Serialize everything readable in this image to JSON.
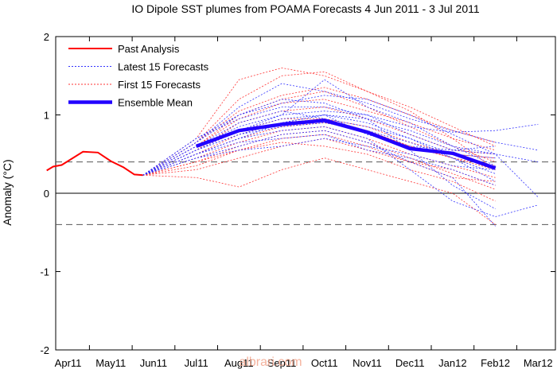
{
  "chart_data": {
    "type": "line",
    "title": "IO Dipole  SST plumes from POAMA Forecasts  4 Jun 2011 -  3 Jul 2011",
    "ylabel": "Anomaly (°C)",
    "xlabel": "",
    "ylim": [
      -2,
      2
    ],
    "xlim": [
      0,
      11
    ],
    "yticks": [
      -2,
      -1,
      0,
      1,
      2
    ],
    "x_ticks": [
      {
        "label": "Apr11",
        "x": 0.5
      },
      {
        "label": "May11",
        "x": 1.5
      },
      {
        "label": "Jun11",
        "x": 2.5
      },
      {
        "label": "Jul11",
        "x": 3.5
      },
      {
        "label": "Aug11",
        "x": 4.5
      },
      {
        "label": "Sep11",
        "x": 5.5
      },
      {
        "label": "Oct11",
        "x": 6.5
      },
      {
        "label": "Nov11",
        "x": 7.5
      },
      {
        "label": "Dec11",
        "x": 8.5
      },
      {
        "label": "Jan12",
        "x": 9.5
      },
      {
        "label": "Feb12",
        "x": 10.5
      },
      {
        "label": "Mar12",
        "x": 11.5
      }
    ],
    "threshold_lines": [
      0.4,
      -0.4
    ],
    "legend": {
      "placement": "top-left",
      "entries": [
        {
          "label": "Past Analysis",
          "color": "#ff0000",
          "style": "solid"
        },
        {
          "label": "Latest 15 Forecasts",
          "color": "#3333ff",
          "style": "dotted"
        },
        {
          "label": "First 15 Forecasts",
          "color": "#ff3333",
          "style": "dotted"
        },
        {
          "label": "Ensemble Mean",
          "color": "#2200ff",
          "style": "thick"
        }
      ]
    },
    "past_analysis": {
      "x": [
        0.0,
        0.15,
        0.35,
        0.85,
        1.2,
        1.5,
        1.8,
        2.05,
        2.25
      ],
      "y": [
        0.29,
        0.34,
        0.36,
        0.53,
        0.52,
        0.41,
        0.33,
        0.24,
        0.23
      ]
    },
    "ensemble_mean": {
      "x": [
        3.5,
        4.5,
        5.5,
        6.5,
        7.5,
        8.5,
        9.5,
        10.5
      ],
      "y": [
        0.6,
        0.8,
        0.88,
        0.93,
        0.78,
        0.57,
        0.51,
        0.32
      ]
    },
    "forecast_origin": {
      "x": 2.25,
      "y": 0.23
    },
    "latest_forecasts": [
      {
        "x": [
          3.5,
          4.5,
          5.5,
          6.5,
          7.5,
          8.5,
          9.5,
          10.5,
          11.5
        ],
        "y": [
          0.55,
          0.75,
          0.9,
          1.0,
          0.95,
          0.8,
          0.6,
          0.5,
          0.4
        ]
      },
      {
        "x": [
          3.5,
          4.5,
          5.5,
          6.5,
          7.5,
          8.5,
          9.5,
          10.5,
          11.5
        ],
        "y": [
          0.6,
          0.85,
          1.0,
          1.05,
          1.0,
          0.85,
          0.78,
          0.8,
          0.88
        ]
      },
      {
        "x": [
          3.5,
          4.5,
          5.5,
          6.5,
          7.5,
          8.5,
          9.5,
          10.5,
          11.5
        ],
        "y": [
          0.7,
          1.0,
          1.15,
          1.25,
          1.2,
          1.0,
          0.75,
          0.5,
          -0.05
        ]
      },
      {
        "x": [
          3.5,
          4.5,
          5.5,
          6.5,
          7.5,
          8.5,
          9.5,
          10.5,
          11.5
        ],
        "y": [
          0.5,
          0.7,
          0.8,
          0.85,
          0.7,
          0.3,
          -0.1,
          -0.3,
          -0.15
        ]
      },
      {
        "x": [
          3.5,
          4.5,
          5.5,
          6.5,
          7.5,
          8.5,
          9.5,
          10.5,
          11.5
        ],
        "y": [
          0.65,
          1.1,
          1.4,
          1.3,
          1.15,
          0.95,
          0.8,
          0.65,
          0.55
        ]
      },
      {
        "x": [
          3.5,
          4.5,
          5.5,
          6.5,
          7.5,
          8.5,
          9.5,
          10.5
        ],
        "y": [
          0.55,
          0.8,
          1.0,
          1.45,
          1.1,
          0.9,
          0.6,
          0.35
        ]
      },
      {
        "x": [
          3.5,
          4.5,
          5.5,
          6.5,
          7.5,
          8.5,
          9.5,
          10.5
        ],
        "y": [
          0.45,
          0.6,
          0.75,
          0.8,
          0.65,
          0.4,
          0.2,
          -0.42
        ]
      },
      {
        "x": [
          3.5,
          4.5,
          5.5,
          6.5,
          7.5,
          8.5,
          9.5,
          10.5
        ],
        "y": [
          0.6,
          0.9,
          1.05,
          0.95,
          0.85,
          0.7,
          0.45,
          0.25
        ]
      },
      {
        "x": [
          3.5,
          4.5,
          5.5,
          6.5,
          7.5,
          8.5,
          9.5,
          10.5
        ],
        "y": [
          0.5,
          0.65,
          0.7,
          0.75,
          0.55,
          0.45,
          0.3,
          0.1
        ]
      },
      {
        "x": [
          3.5,
          4.5,
          5.5,
          6.5,
          7.5,
          8.5,
          9.5,
          10.5
        ],
        "y": [
          0.7,
          0.95,
          1.1,
          1.1,
          1.0,
          0.75,
          0.55,
          0.5
        ]
      },
      {
        "x": [
          3.5,
          4.5,
          5.5,
          6.5,
          7.5,
          8.5,
          9.5,
          10.5
        ],
        "y": [
          0.45,
          0.55,
          0.6,
          0.7,
          0.6,
          0.5,
          0.35,
          0.3
        ]
      },
      {
        "x": [
          3.5,
          4.5,
          5.5,
          6.5,
          7.5,
          8.5,
          9.5,
          10.5
        ],
        "y": [
          0.65,
          1.0,
          1.2,
          1.15,
          0.95,
          0.55,
          0.1,
          -0.2
        ]
      },
      {
        "x": [
          3.5,
          4.5,
          5.5,
          6.5,
          7.5,
          8.5,
          9.5,
          10.5
        ],
        "y": [
          0.55,
          0.75,
          0.85,
          0.9,
          0.8,
          0.65,
          0.45,
          0.15
        ]
      },
      {
        "x": [
          3.5,
          4.5,
          5.5,
          6.5,
          7.5,
          8.5,
          9.5,
          10.5
        ],
        "y": [
          0.6,
          0.8,
          0.95,
          1.0,
          0.9,
          0.7,
          0.5,
          0.45
        ]
      },
      {
        "x": [
          3.5,
          4.5,
          5.5,
          6.5,
          7.5,
          8.5,
          9.5,
          10.5
        ],
        "y": [
          0.5,
          0.7,
          0.9,
          1.0,
          0.75,
          0.6,
          0.55,
          0.6
        ]
      }
    ],
    "first_forecasts": [
      {
        "x": [
          3.5,
          4.5,
          5.5,
          6.5,
          7.5,
          8.5,
          9.5,
          10.5
        ],
        "y": [
          0.7,
          1.45,
          1.6,
          1.5,
          1.3,
          1.05,
          0.7,
          0.3
        ]
      },
      {
        "x": [
          3.5,
          4.5,
          5.5,
          6.5,
          7.5,
          8.5,
          9.5,
          10.5
        ],
        "y": [
          0.2,
          0.08,
          0.3,
          0.45,
          0.3,
          0.15,
          0.0,
          -0.4
        ]
      },
      {
        "x": [
          3.5,
          4.5,
          5.5,
          6.5,
          7.5,
          8.5,
          9.5,
          10.5
        ],
        "y": [
          0.3,
          0.45,
          0.6,
          0.7,
          0.55,
          0.4,
          0.3,
          0.1
        ]
      },
      {
        "x": [
          3.5,
          4.5,
          5.5,
          6.5,
          7.5,
          8.5,
          9.5,
          10.5
        ],
        "y": [
          0.65,
          1.2,
          1.5,
          1.55,
          1.3,
          1.1,
          0.85,
          0.6
        ]
      },
      {
        "x": [
          3.5,
          4.5,
          5.5,
          6.5,
          7.5,
          8.5,
          9.5,
          10.5
        ],
        "y": [
          0.5,
          0.7,
          0.85,
          0.9,
          0.8,
          0.6,
          0.45,
          0.3
        ]
      },
      {
        "x": [
          3.5,
          4.5,
          5.5,
          6.5,
          7.5,
          8.5,
          9.5,
          10.5
        ],
        "y": [
          0.6,
          1.0,
          1.2,
          1.3,
          1.1,
          0.85,
          0.6,
          0.4
        ]
      },
      {
        "x": [
          3.5,
          4.5,
          5.5,
          6.5,
          7.5,
          8.5,
          9.5,
          10.5
        ],
        "y": [
          0.35,
          0.55,
          0.65,
          0.6,
          0.5,
          0.3,
          0.15,
          -0.1
        ]
      },
      {
        "x": [
          3.5,
          4.5,
          5.5,
          6.5,
          7.5,
          8.5,
          9.5,
          10.5
        ],
        "y": [
          0.55,
          0.9,
          1.05,
          1.1,
          0.95,
          0.75,
          0.55,
          0.5
        ]
      },
      {
        "x": [
          3.5,
          4.5,
          5.5,
          6.5,
          7.5,
          8.5,
          9.5,
          10.5
        ],
        "y": [
          0.45,
          0.65,
          0.8,
          0.85,
          0.7,
          0.5,
          0.35,
          0.2
        ]
      },
      {
        "x": [
          3.5,
          4.5,
          5.5,
          6.5,
          7.5,
          8.5,
          9.5,
          10.5
        ],
        "y": [
          0.6,
          0.95,
          1.15,
          1.2,
          1.05,
          0.9,
          0.7,
          0.55
        ]
      },
      {
        "x": [
          3.5,
          4.5,
          5.5,
          6.5,
          7.5,
          8.5,
          9.5,
          10.5
        ],
        "y": [
          0.4,
          0.6,
          0.75,
          0.8,
          0.65,
          0.45,
          0.25,
          0.05
        ]
      },
      {
        "x": [
          3.5,
          4.5,
          5.5,
          6.5,
          7.5,
          8.5,
          9.5,
          10.5
        ],
        "y": [
          0.55,
          0.8,
          0.95,
          0.95,
          0.85,
          0.65,
          0.5,
          0.45
        ]
      },
      {
        "x": [
          3.5,
          4.5,
          5.5,
          6.5,
          7.5,
          8.5,
          9.5,
          10.5
        ],
        "y": [
          0.65,
          1.05,
          1.25,
          1.35,
          1.2,
          1.0,
          0.8,
          0.65
        ]
      },
      {
        "x": [
          3.5,
          4.5,
          5.5,
          6.5,
          7.5,
          8.5,
          9.5,
          10.5
        ],
        "y": [
          0.4,
          0.55,
          0.7,
          0.75,
          0.6,
          0.4,
          0.2,
          0.15
        ]
      },
      {
        "x": [
          3.5,
          4.5,
          5.5,
          6.5,
          7.5,
          8.5,
          9.5,
          10.5
        ],
        "y": [
          0.5,
          0.75,
          0.9,
          0.95,
          0.8,
          0.6,
          0.45,
          0.35
        ]
      }
    ],
    "watermark": "albrari.com"
  }
}
